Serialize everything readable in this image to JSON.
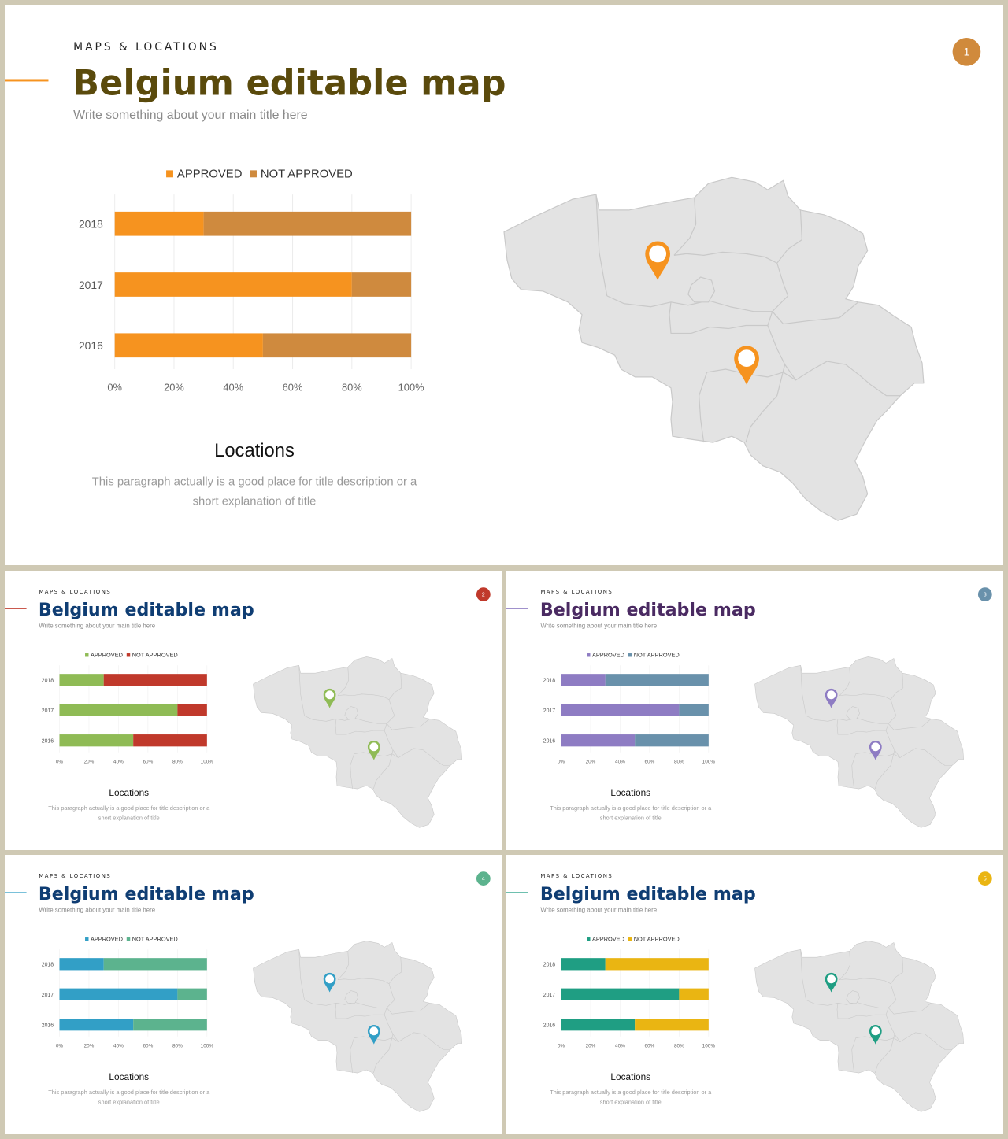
{
  "slides": [
    {
      "number": "1",
      "eyebrow": "MAPS & LOCATIONS",
      "title": "Belgium editable map",
      "subtitle": "Write something about your main title here",
      "chart_data": {
        "type": "bar",
        "stacked": true,
        "orientation": "horizontal",
        "categories": [
          "2018",
          "2017",
          "2016"
        ],
        "series": [
          {
            "name": "APPROVED",
            "values": [
              30,
              80,
              50
            ]
          },
          {
            "name": "NOT APPROVED",
            "values": [
              70,
              20,
              50
            ]
          }
        ],
        "x_ticks": [
          "0%",
          "20%",
          "40%",
          "60%",
          "80%",
          "100%"
        ],
        "xlim": [
          0,
          100
        ],
        "legend": "top",
        "grid": true
      },
      "locations_title": "Locations",
      "locations_text_1": "This paragraph  actually is a good place for title description or a",
      "locations_text_2": "short explanation of title",
      "colors": {
        "title": "#5a4a0c",
        "accent": "#f6931f",
        "approved": "#f6931f",
        "not_approved": "#cf8a3e",
        "pin": "#f6931f",
        "badge": "#d08a3c"
      }
    },
    {
      "number": "2",
      "eyebrow": "MAPS & LOCATIONS",
      "title": "Belgium editable map",
      "subtitle": "Write something about your main title here",
      "chart_data": {
        "type": "bar",
        "stacked": true,
        "orientation": "horizontal",
        "categories": [
          "2018",
          "2017",
          "2016"
        ],
        "series": [
          {
            "name": "APPROVED",
            "values": [
              30,
              80,
              50
            ]
          },
          {
            "name": "NOT APPROVED",
            "values": [
              70,
              20,
              50
            ]
          }
        ],
        "x_ticks": [
          "0%",
          "20%",
          "40%",
          "60%",
          "80%",
          "100%"
        ],
        "xlim": [
          0,
          100
        ],
        "legend": "top",
        "grid": true
      },
      "locations_title": "Locations",
      "locations_text_1": "This paragraph  actually is a good place for title description or a",
      "locations_text_2": "short explanation of title",
      "colors": {
        "title": "#0f3d73",
        "accent": "#c0392b",
        "approved": "#8fbb55",
        "not_approved": "#c0392b",
        "pin": "#8fbb55",
        "badge": "#c0392b"
      }
    },
    {
      "number": "3",
      "eyebrow": "MAPS & LOCATIONS",
      "title": "Belgium editable map",
      "subtitle": "Write something about your main title here",
      "chart_data": {
        "type": "bar",
        "stacked": true,
        "orientation": "horizontal",
        "categories": [
          "2018",
          "2017",
          "2016"
        ],
        "series": [
          {
            "name": "APPROVED",
            "values": [
              30,
              80,
              50
            ]
          },
          {
            "name": "NOT APPROVED",
            "values": [
              70,
              20,
              50
            ]
          }
        ],
        "x_ticks": [
          "0%",
          "20%",
          "40%",
          "60%",
          "80%",
          "100%"
        ],
        "xlim": [
          0,
          100
        ],
        "legend": "top",
        "grid": true
      },
      "locations_title": "Locations",
      "locations_text_1": "This paragraph  actually is a good place for title description or a",
      "locations_text_2": "short explanation of title",
      "colors": {
        "title": "#4a2a62",
        "accent": "#8e7cc3",
        "approved": "#8e7cc3",
        "not_approved": "#6991ab",
        "pin": "#8e7cc3",
        "badge": "#6991ab"
      }
    },
    {
      "number": "4",
      "eyebrow": "MAPS & LOCATIONS",
      "title": "Belgium editable map",
      "subtitle": "Write something about your main title here",
      "chart_data": {
        "type": "bar",
        "stacked": true,
        "orientation": "horizontal",
        "categories": [
          "2018",
          "2017",
          "2016"
        ],
        "series": [
          {
            "name": "APPROVED",
            "values": [
              30,
              80,
              50
            ]
          },
          {
            "name": "NOT APPROVED",
            "values": [
              70,
              20,
              50
            ]
          }
        ],
        "x_ticks": [
          "0%",
          "20%",
          "40%",
          "60%",
          "80%",
          "100%"
        ],
        "xlim": [
          0,
          100
        ],
        "legend": "top",
        "grid": true
      },
      "locations_title": "Locations",
      "locations_text_1": "This paragraph  actually is a good place for title description or a",
      "locations_text_2": "short explanation of title",
      "colors": {
        "title": "#0f3d73",
        "accent": "#329fc6",
        "approved": "#329fc6",
        "not_approved": "#5cb38e",
        "pin": "#329fc6",
        "badge": "#5cb38e"
      }
    },
    {
      "number": "5",
      "eyebrow": "MAPS & LOCATIONS",
      "title": "Belgium editable map",
      "subtitle": "Write something about your main title here",
      "chart_data": {
        "type": "bar",
        "stacked": true,
        "orientation": "horizontal",
        "categories": [
          "2018",
          "2017",
          "2016"
        ],
        "series": [
          {
            "name": "APPROVED",
            "values": [
              30,
              80,
              50
            ]
          },
          {
            "name": "NOT APPROVED",
            "values": [
              70,
              20,
              50
            ]
          }
        ],
        "x_ticks": [
          "0%",
          "20%",
          "40%",
          "60%",
          "80%",
          "100%"
        ],
        "xlim": [
          0,
          100
        ],
        "legend": "top",
        "grid": true
      },
      "locations_title": "Locations",
      "locations_text_1": "This paragraph  actually is a good place for title description or a",
      "locations_text_2": "short explanation of title",
      "colors": {
        "title": "#0f3d73",
        "accent": "#1f9e83",
        "approved": "#1f9e83",
        "not_approved": "#eab512",
        "pin": "#1f9e83",
        "badge": "#eab512"
      }
    }
  ],
  "map": {
    "pins": [
      {
        "label": "pin-west",
        "fill": true
      },
      {
        "label": "pin-south",
        "fill": true
      }
    ]
  }
}
